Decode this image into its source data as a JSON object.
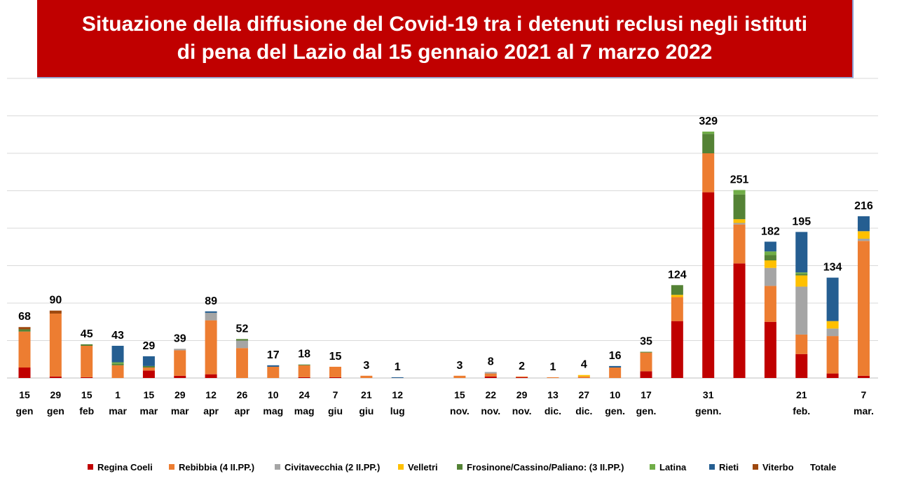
{
  "title": {
    "line1": "Situazione della diffusione del Covid-19 tra i detenuti reclusi negli istituti",
    "line2": "di pena del Lazio dal 15 gennaio 2021 al 7 marzo 2022"
  },
  "colors": {
    "Regina Coeli": "#c00000",
    "Rebibbia (4 II.PP.)": "#ed7d31",
    "Civitavecchia (2 II.PP.)": "#a5a5a5",
    "Velletri": "#ffc000",
    "Frosinone/Cassino/Paliano: (3 II.PP.)": "#548235",
    "Latina": "#70ad47",
    "Rieti": "#255e91",
    "Viterbo": "#9e480e"
  },
  "chart_data": {
    "type": "bar",
    "stacked": true,
    "ylim": [
      0,
      400
    ],
    "grid": true,
    "legend_position": "bottom",
    "series_names": [
      "Regina Coeli",
      "Rebibbia (4 II.PP.)",
      "Civitavecchia (2 II.PP.)",
      "Velletri",
      "Frosinone/Cassino/Paliano: (3 II.PP.)",
      "Latina",
      "Rieti",
      "Viterbo"
    ],
    "legend": [
      "Regina Coeli",
      "Rebibbia (4 II.PP.)",
      "Civitavecchia (2 II.PP.)",
      "Velletri",
      "Frosinone/Cassino/Paliano: (3 II.PP.)",
      "Latina",
      "Rieti",
      "Viterbo",
      "Totale"
    ],
    "bars": [
      {
        "label": [
          "15",
          "gen"
        ],
        "total": "68",
        "values": [
          14,
          48,
          0,
          0,
          3,
          0,
          0,
          3
        ]
      },
      {
        "label": [
          "29",
          "gen"
        ],
        "total": "90",
        "values": [
          2,
          84,
          0,
          0,
          0,
          0,
          0,
          4
        ]
      },
      {
        "label": [
          "15",
          "feb"
        ],
        "total": "45",
        "values": [
          1,
          42,
          0,
          0,
          2,
          0,
          0,
          0
        ]
      },
      {
        "label": [
          "1",
          "mar"
        ],
        "total": "43",
        "values": [
          0,
          17,
          0,
          0,
          2,
          2,
          22,
          0
        ]
      },
      {
        "label": [
          "15",
          "mar"
        ],
        "total": "29",
        "values": [
          10,
          4,
          0,
          0,
          2,
          0,
          13,
          0
        ]
      },
      {
        "label": [
          "29",
          "mar"
        ],
        "total": "39",
        "values": [
          3,
          34,
          2,
          0,
          0,
          0,
          0,
          0
        ]
      },
      {
        "label": [
          "12",
          "apr"
        ],
        "total": "89",
        "values": [
          5,
          72,
          10,
          0,
          0,
          0,
          2,
          0
        ]
      },
      {
        "label": [
          "26",
          "apr"
        ],
        "total": "52",
        "values": [
          0,
          40,
          10,
          0,
          2,
          0,
          0,
          0
        ]
      },
      {
        "label": [
          "10",
          "mag"
        ],
        "total": "17",
        "values": [
          0,
          15,
          0,
          0,
          0,
          0,
          2,
          0
        ]
      },
      {
        "label": [
          "24",
          "mag"
        ],
        "total": "18",
        "values": [
          1,
          16,
          0,
          0,
          1,
          0,
          0,
          0
        ]
      },
      {
        "label": [
          "7",
          "giu"
        ],
        "total": "15",
        "values": [
          1,
          14,
          0,
          0,
          0,
          0,
          0,
          0
        ]
      },
      {
        "label": [
          "21",
          "giu"
        ],
        "total": "3",
        "values": [
          0,
          3,
          0,
          0,
          0,
          0,
          0,
          0
        ]
      },
      {
        "label": [
          "12",
          "lug"
        ],
        "total": "1",
        "values": [
          0,
          0,
          0,
          0,
          0,
          0,
          1,
          0
        ]
      },
      {
        "label": [
          "",
          ""
        ],
        "total": "",
        "values": [
          0,
          0,
          0,
          0,
          0,
          0,
          0,
          0
        ]
      },
      {
        "label": [
          "15",
          "nov."
        ],
        "total": "3",
        "values": [
          0,
          3,
          0,
          0,
          0,
          0,
          0,
          0
        ]
      },
      {
        "label": [
          "22",
          "nov."
        ],
        "total": "8",
        "values": [
          2,
          4,
          2,
          0,
          0,
          0,
          0,
          0
        ]
      },
      {
        "label": [
          "29",
          "nov."
        ],
        "total": "2",
        "values": [
          1,
          1,
          0,
          0,
          0,
          0,
          0,
          0
        ]
      },
      {
        "label": [
          "13",
          "dic."
        ],
        "total": "1",
        "values": [
          0,
          1,
          0,
          0,
          0,
          0,
          0,
          0
        ]
      },
      {
        "label": [
          "27",
          "dic."
        ],
        "total": "4",
        "values": [
          0,
          2,
          0,
          2,
          0,
          0,
          0,
          0
        ]
      },
      {
        "label": [
          "10",
          "gen."
        ],
        "total": "16",
        "values": [
          0,
          14,
          0,
          0,
          0,
          0,
          2,
          0
        ]
      },
      {
        "label": [
          "17",
          "gen."
        ],
        "total": "35",
        "values": [
          9,
          25,
          0,
          0,
          1,
          0,
          0,
          0
        ]
      },
      {
        "label": [
          "",
          ""
        ],
        "total": "124",
        "values": [
          76,
          32,
          0,
          3,
          13,
          0,
          0,
          0
        ]
      },
      {
        "label": [
          "31",
          "genn."
        ],
        "total": "329",
        "values": [
          248,
          52,
          0,
          0,
          26,
          3,
          0,
          0
        ]
      },
      {
        "label": [
          "",
          ""
        ],
        "total": "251",
        "values": [
          153,
          52,
          2,
          5,
          33,
          6,
          0,
          0
        ]
      },
      {
        "label": [
          "",
          ""
        ],
        "total": "182",
        "values": [
          75,
          48,
          24,
          10,
          7,
          5,
          13,
          0
        ]
      },
      {
        "label": [
          "21",
          "feb."
        ],
        "total": "195",
        "values": [
          32,
          26,
          64,
          15,
          2,
          2,
          54,
          0
        ]
      },
      {
        "label": [
          "",
          ""
        ],
        "total": "134",
        "values": [
          6,
          50,
          10,
          10,
          0,
          0,
          58,
          0
        ]
      },
      {
        "label": [
          "7",
          "mar."
        ],
        "total": "216",
        "values": [
          3,
          180,
          3,
          10,
          0,
          0,
          20,
          0
        ]
      }
    ]
  }
}
